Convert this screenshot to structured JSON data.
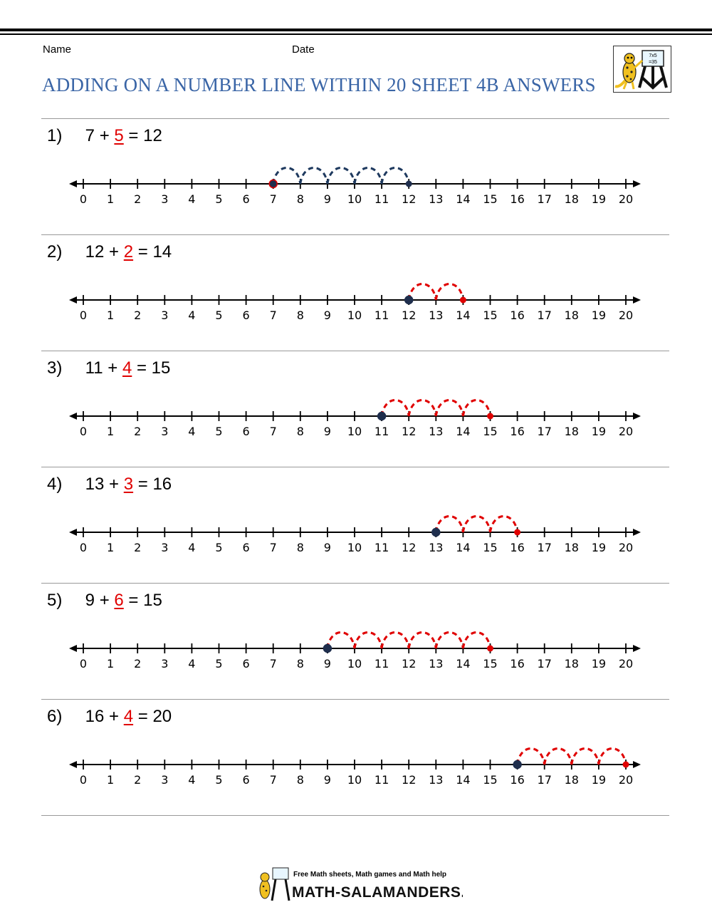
{
  "header": {
    "name_label": "Name",
    "date_label": "Date",
    "title": "ADDING ON A NUMBER LINE WITHIN 20 SHEET 4B ANSWERS",
    "logo_text": "7x5 =35"
  },
  "colors": {
    "title": "#3a65a6",
    "problem1_jumps": "#1f3a5f",
    "jumps": "#e00000",
    "start_dot": "#1f2e4d"
  },
  "number_line": {
    "ticks": [
      "0",
      "1",
      "2",
      "3",
      "4",
      "5",
      "6",
      "7",
      "8",
      "9",
      "10",
      "11",
      "12",
      "13",
      "14",
      "15",
      "16",
      "17",
      "18",
      "19",
      "20"
    ]
  },
  "problems": [
    {
      "index": "1)",
      "a": "7",
      "plus": "+",
      "b": "5",
      "equals": "=",
      "result": "12",
      "start": 7,
      "end": 12,
      "jump_color": "#1f3a5f"
    },
    {
      "index": "2)",
      "a": "12",
      "plus": "+",
      "b": "2",
      "equals": "=",
      "result": "14",
      "start": 12,
      "end": 14,
      "jump_color": "#e00000"
    },
    {
      "index": "3)",
      "a": "11",
      "plus": "+",
      "b": "4",
      "equals": "=",
      "result": "15",
      "start": 11,
      "end": 15,
      "jump_color": "#e00000"
    },
    {
      "index": "4)",
      "a": "13",
      "plus": "+",
      "b": "3",
      "equals": "=",
      "result": "16",
      "start": 13,
      "end": 16,
      "jump_color": "#e00000"
    },
    {
      "index": "5)",
      "a": "9",
      "plus": "+",
      "b": "6",
      "equals": "=",
      "result": "15",
      "start": 9,
      "end": 15,
      "jump_color": "#e00000"
    },
    {
      "index": "6)",
      "a": "16",
      "plus": "+",
      "b": "4",
      "equals": "=",
      "result": "20",
      "start": 16,
      "end": 20,
      "jump_color": "#e00000"
    }
  ],
  "footer": {
    "tagline": "Free Math sheets, Math games and Math help",
    "site": "MATH-SALAMANDERS.COM"
  }
}
